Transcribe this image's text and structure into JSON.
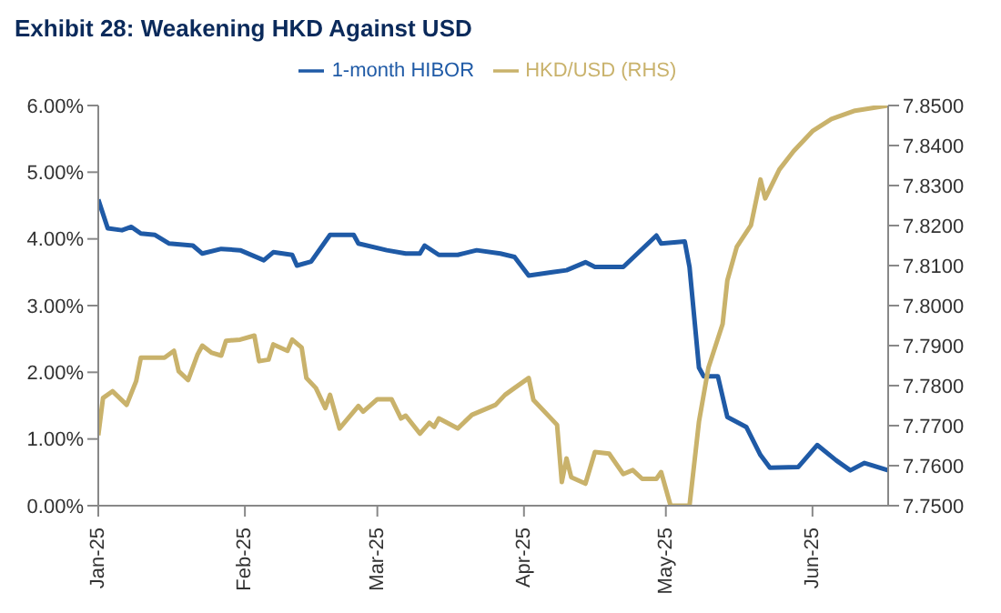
{
  "chart_data": {
    "type": "line",
    "title": "Exhibit 28:  Weakening HKD Against USD",
    "xlim": [
      "2025-01-01",
      "2025-06-17"
    ],
    "xticks": [
      {
        "value": "2025-01-01",
        "label": "Jan-25"
      },
      {
        "value": "2025-02-01",
        "label": "Feb-25"
      },
      {
        "value": "2025-03-01",
        "label": "Mar-25"
      },
      {
        "value": "2025-04-01",
        "label": "Apr-25"
      },
      {
        "value": "2025-05-01",
        "label": "May-25"
      },
      {
        "value": "2025-06-01",
        "label": "Jun-25"
      }
    ],
    "ylim": [
      0,
      6
    ],
    "yticks": [
      {
        "value": 0,
        "label": "0.00%"
      },
      {
        "value": 1,
        "label": "1.00%"
      },
      {
        "value": 2,
        "label": "2.00%"
      },
      {
        "value": 3,
        "label": "3.00%"
      },
      {
        "value": 4,
        "label": "4.00%"
      },
      {
        "value": 5,
        "label": "5.00%"
      },
      {
        "value": 6,
        "label": "6.00%"
      }
    ],
    "y2lim": [
      7.75,
      7.85
    ],
    "y2ticks": [
      {
        "value": 7.75,
        "label": "7.7500"
      },
      {
        "value": 7.76,
        "label": "7.7600"
      },
      {
        "value": 7.77,
        "label": "7.7700"
      },
      {
        "value": 7.78,
        "label": "7.7800"
      },
      {
        "value": 7.79,
        "label": "7.7900"
      },
      {
        "value": 7.8,
        "label": "7.8000"
      },
      {
        "value": 7.81,
        "label": "7.8100"
      },
      {
        "value": 7.82,
        "label": "7.8200"
      },
      {
        "value": 7.83,
        "label": "7.8300"
      },
      {
        "value": 7.84,
        "label": "7.8400"
      },
      {
        "value": 7.85,
        "label": "7.8500"
      }
    ],
    "grid": false,
    "legend": "top",
    "marker": "none",
    "line_style": "solid",
    "series": [
      {
        "name": "1-month HIBOR",
        "color": "#1f5aa6",
        "x": [
          "2025-01-01",
          "2025-01-03",
          "2025-01-06",
          "2025-01-08",
          "2025-01-10",
          "2025-01-13",
          "2025-01-16",
          "2025-01-21",
          "2025-01-23",
          "2025-01-27",
          "2025-01-31",
          "2025-02-05",
          "2025-02-07",
          "2025-02-11",
          "2025-02-12",
          "2025-02-15",
          "2025-02-19",
          "2025-02-24",
          "2025-02-25",
          "2025-03-03",
          "2025-03-07",
          "2025-03-10",
          "2025-03-11",
          "2025-03-14",
          "2025-03-18",
          "2025-03-22",
          "2025-03-27",
          "2025-03-30",
          "2025-04-02",
          "2025-04-07",
          "2025-04-10",
          "2025-04-14",
          "2025-04-16",
          "2025-04-22",
          "2025-04-29",
          "2025-04-30",
          "2025-05-05",
          "2025-05-06",
          "2025-05-08",
          "2025-05-09",
          "2025-05-12",
          "2025-05-14",
          "2025-05-18",
          "2025-05-21",
          "2025-05-23",
          "2025-05-29",
          "2025-06-02",
          "2025-06-06",
          "2025-06-09",
          "2025-06-12",
          "2025-06-17"
        ],
        "values": [
          4.59,
          4.16,
          4.13,
          4.18,
          4.08,
          4.06,
          3.93,
          3.9,
          3.78,
          3.85,
          3.83,
          3.68,
          3.8,
          3.76,
          3.6,
          3.66,
          4.06,
          4.06,
          3.93,
          3.83,
          3.78,
          3.78,
          3.9,
          3.76,
          3.76,
          3.83,
          3.78,
          3.73,
          3.45,
          3.5,
          3.53,
          3.65,
          3.58,
          3.58,
          4.05,
          3.93,
          3.96,
          3.58,
          2.07,
          1.94,
          1.94,
          1.33,
          1.18,
          0.76,
          0.57,
          0.58,
          0.91,
          0.68,
          0.53,
          0.64,
          0.53
        ]
      },
      {
        "name": "HKD/USD (RHS)",
        "color": "#c9b26b",
        "axis": "y2",
        "x": [
          "2025-01-01",
          "2025-01-02",
          "2025-01-04",
          "2025-01-07",
          "2025-01-09",
          "2025-01-10",
          "2025-01-15",
          "2025-01-17",
          "2025-01-18",
          "2025-01-20",
          "2025-01-22",
          "2025-01-23",
          "2025-01-25",
          "2025-01-27",
          "2025-01-28",
          "2025-01-31",
          "2025-02-03",
          "2025-02-04",
          "2025-02-06",
          "2025-02-07",
          "2025-02-10",
          "2025-02-11",
          "2025-02-13",
          "2025-02-14",
          "2025-02-16",
          "2025-02-18",
          "2025-02-19",
          "2025-02-21",
          "2025-02-25",
          "2025-02-26",
          "2025-03-01",
          "2025-03-04",
          "2025-03-06",
          "2025-03-07",
          "2025-03-10",
          "2025-03-12",
          "2025-03-13",
          "2025-03-14",
          "2025-03-18",
          "2025-03-21",
          "2025-03-26",
          "2025-03-28",
          "2025-03-30",
          "2025-04-02",
          "2025-04-03",
          "2025-04-08",
          "2025-04-09",
          "2025-04-10",
          "2025-04-11",
          "2025-04-14",
          "2025-04-16",
          "2025-04-19",
          "2025-04-22",
          "2025-04-24",
          "2025-04-26",
          "2025-04-29",
          "2025-04-30",
          "2025-05-01",
          "2025-05-02",
          "2025-05-06",
          "2025-05-08",
          "2025-05-10",
          "2025-05-13",
          "2025-05-14",
          "2025-05-16",
          "2025-05-19",
          "2025-05-21",
          "2025-05-22",
          "2025-05-25",
          "2025-05-28",
          "2025-06-01",
          "2025-06-05",
          "2025-06-10",
          "2025-06-17"
        ],
        "values": [
          7.7676,
          7.7769,
          7.7786,
          7.7752,
          7.7811,
          7.787,
          7.787,
          7.7887,
          7.7836,
          7.7814,
          7.7878,
          7.79,
          7.7882,
          7.7875,
          7.7912,
          7.7915,
          7.7925,
          7.7861,
          7.7865,
          7.7903,
          7.7887,
          7.7915,
          7.7895,
          7.7819,
          7.7794,
          7.7744,
          7.7777,
          7.7693,
          7.7749,
          7.7735,
          7.7766,
          7.7766,
          7.7718,
          7.7725,
          7.768,
          7.7707,
          7.7697,
          7.7718,
          7.7693,
          7.7727,
          7.7752,
          7.7777,
          7.7794,
          7.7819,
          7.7764,
          7.7702,
          7.7559,
          7.7618,
          7.7571,
          7.7555,
          7.7634,
          7.763,
          7.7579,
          7.7589,
          7.7567,
          7.7567,
          7.7584,
          7.7542,
          7.75,
          7.75,
          7.771,
          7.7845,
          7.7954,
          7.8063,
          7.8147,
          7.8201,
          7.8315,
          7.8268,
          7.834,
          7.8386,
          7.8436,
          7.8466,
          7.8487,
          7.85
        ]
      }
    ]
  }
}
